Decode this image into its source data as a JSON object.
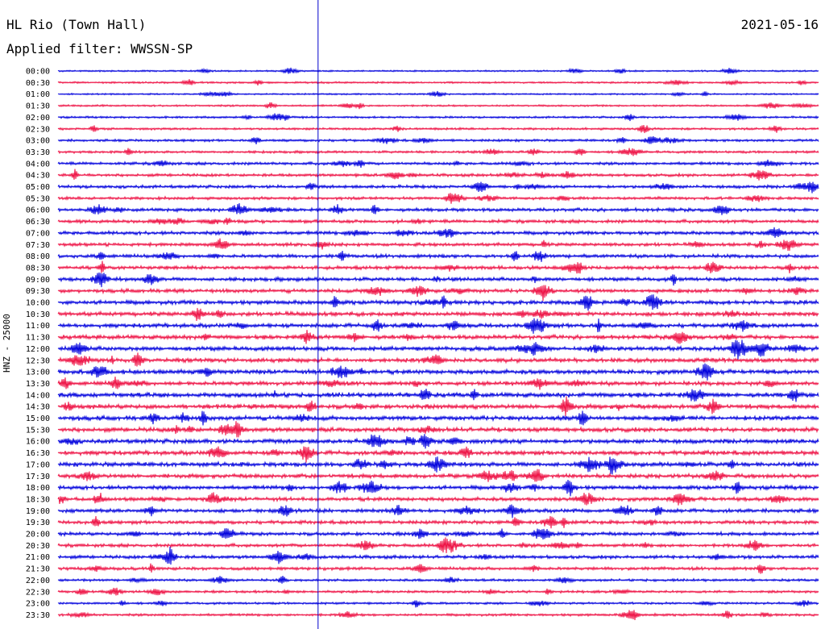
{
  "header": {
    "station": "HL Rio (Town Hall)",
    "filter": "Applied filter: WWSSN-SP",
    "date": "2021-05-16",
    "channel_label": "HNZ - 25000"
  },
  "colors": {
    "trace_a": "#0000dd",
    "trace_b": "#ee1144",
    "marker_line": "#0000cc",
    "text": "#000000"
  },
  "chart_data": {
    "type": "line",
    "title": "HL Rio (Town Hall)",
    "subtitle": "Applied filter: WWSSN-SP",
    "ylabel": "HNZ - 25000",
    "xlabel": "",
    "grid": false,
    "legend": "none",
    "row_labels": [
      "00:00",
      "00:30",
      "01:00",
      "01:30",
      "02:00",
      "02:30",
      "03:00",
      "03:30",
      "04:00",
      "04:30",
      "05:00",
      "05:30",
      "06:00",
      "06:30",
      "07:00",
      "07:30",
      "08:00",
      "08:30",
      "09:00",
      "09:30",
      "10:00",
      "10:30",
      "11:00",
      "11:30",
      "12:00",
      "12:30",
      "13:00",
      "13:30",
      "14:00",
      "14:30",
      "15:00",
      "15:30",
      "16:00",
      "16:30",
      "17:00",
      "17:30",
      "18:00",
      "18:30",
      "19:00",
      "19:30",
      "20:00",
      "20:30",
      "21:00",
      "21:30",
      "22:00",
      "22:30",
      "23:00",
      "23:30"
    ],
    "row_noise_level": [
      0.15,
      0.2,
      0.15,
      0.2,
      0.25,
      0.3,
      0.35,
      0.35,
      0.45,
      0.45,
      0.5,
      0.45,
      0.55,
      0.55,
      0.6,
      0.55,
      0.6,
      0.6,
      0.65,
      0.65,
      0.75,
      0.75,
      0.75,
      0.75,
      0.8,
      0.75,
      0.8,
      0.75,
      0.85,
      0.85,
      0.85,
      0.8,
      0.8,
      0.8,
      0.8,
      0.75,
      0.7,
      0.65,
      0.65,
      0.6,
      0.6,
      0.55,
      0.55,
      0.5,
      0.35,
      0.35,
      0.3,
      0.35
    ],
    "marker_time_fraction": 0.342
  }
}
